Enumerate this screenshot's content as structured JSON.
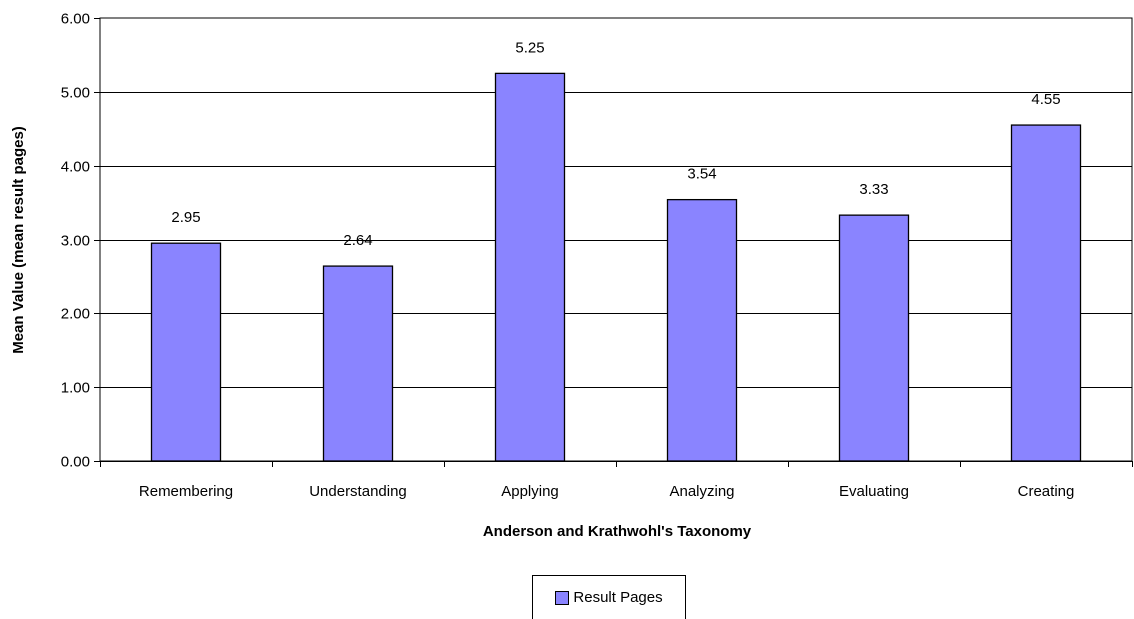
{
  "chart_data": {
    "type": "bar",
    "categories": [
      "Remembering",
      "Understanding",
      "Applying",
      "Analyzing",
      "Evaluating",
      "Creating"
    ],
    "series": [
      {
        "name": "Result Pages",
        "values": [
          2.95,
          2.64,
          5.25,
          3.54,
          3.33,
          4.55
        ]
      }
    ],
    "data_labels": [
      "2.95",
      "2.64",
      "5.25",
      "3.54",
      "3.33",
      "4.55"
    ],
    "y_ticks": [
      "0.00",
      "1.00",
      "2.00",
      "3.00",
      "4.00",
      "5.00",
      "6.00"
    ],
    "ylim": [
      0,
      6
    ],
    "xlabel": "Anderson and Krathwohl's Taxonomy",
    "ylabel": "Mean Value (mean result pages)",
    "grid": true,
    "legend_position": "bottom",
    "bar_color": "#8a84ff",
    "bar_edge_color": "#000000"
  }
}
